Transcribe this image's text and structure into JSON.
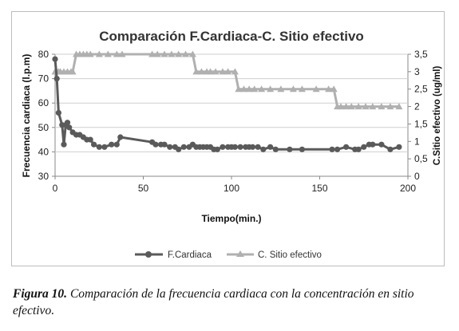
{
  "chart_data": {
    "type": "line",
    "title": "Comparación F.Cardiaca-C. Sitio efectivo",
    "xlabel": "Tiempo(min.)",
    "ylabel_left": "Frecuencia cardiaca (l.p.m)",
    "ylabel_right": "C.Sitio efectivo (ug/ml)",
    "xlim": [
      0,
      200
    ],
    "ylim_left": [
      30,
      80
    ],
    "ylim_right": [
      0,
      3.5
    ],
    "x_ticks": [
      "0",
      "50",
      "100",
      "150",
      "200"
    ],
    "y_left_ticks": [
      "30",
      "40",
      "50",
      "60",
      "70",
      "80"
    ],
    "y_right_ticks": [
      "0",
      "0,5",
      "1",
      "1,5",
      "2",
      "2,5",
      "3",
      "3,5"
    ],
    "grid": "horizontal",
    "legend_position": "bottom",
    "series": [
      {
        "name": "F.Cardiaca",
        "axis": "left",
        "color": "#5a5a5a",
        "marker": "circle",
        "x": [
          0,
          1,
          2,
          4,
          5,
          6,
          7,
          8,
          10,
          12,
          14,
          16,
          18,
          20,
          22,
          25,
          28,
          32,
          35,
          37,
          55,
          57,
          60,
          62,
          65,
          68,
          70,
          73,
          76,
          78,
          80,
          82,
          84,
          86,
          88,
          90,
          92,
          95,
          98,
          100,
          102,
          105,
          108,
          110,
          112,
          115,
          118,
          122,
          125,
          133,
          140,
          157,
          160,
          165,
          170,
          172,
          175,
          178,
          180,
          185,
          190,
          195
        ],
        "y": [
          78,
          70,
          56,
          51,
          43,
          51,
          52,
          50,
          48,
          47,
          47,
          46,
          45,
          45,
          43,
          42,
          42,
          43,
          43,
          46,
          44,
          43,
          43,
          43,
          42,
          42,
          41,
          42,
          42,
          43,
          42,
          42,
          42,
          42,
          42,
          41,
          41,
          42,
          42,
          42,
          42,
          42,
          42,
          42,
          42,
          42,
          41,
          42,
          41,
          41,
          41,
          41,
          41,
          42,
          41,
          41,
          42,
          43,
          43,
          43,
          41,
          42
        ]
      },
      {
        "name": "C. Sitio efectivo",
        "axis": "right",
        "color": "#b0b0b0",
        "marker": "triangle",
        "x": [
          0,
          1,
          2,
          3,
          5,
          7,
          9,
          10,
          12,
          14,
          16,
          18,
          20,
          25,
          30,
          35,
          38,
          55,
          58,
          62,
          66,
          70,
          74,
          78,
          80,
          83,
          86,
          88,
          91,
          95,
          98,
          102,
          104,
          107,
          110,
          113,
          117,
          122,
          128,
          135,
          140,
          148,
          155,
          158,
          160,
          162,
          165,
          168,
          172,
          176,
          180,
          185,
          190,
          195
        ],
        "y": [
          3,
          3,
          3,
          3,
          3,
          3,
          3,
          3,
          3.5,
          3.5,
          3.5,
          3.5,
          3.5,
          3.5,
          3.5,
          3.5,
          3.5,
          3.5,
          3.5,
          3.5,
          3.5,
          3.5,
          3.5,
          3.5,
          3,
          3,
          3,
          3,
          3,
          3,
          3,
          3,
          2.5,
          2.5,
          2.5,
          2.5,
          2.5,
          2.5,
          2.5,
          2.5,
          2.5,
          2.5,
          2.5,
          2.5,
          2,
          2,
          2,
          2,
          2,
          2,
          2,
          2,
          2,
          2
        ]
      }
    ]
  },
  "caption": {
    "label": "Figura 10.",
    "text": " Comparación de la frecuencia cardiaca con la concentración en sitio efectivo."
  }
}
